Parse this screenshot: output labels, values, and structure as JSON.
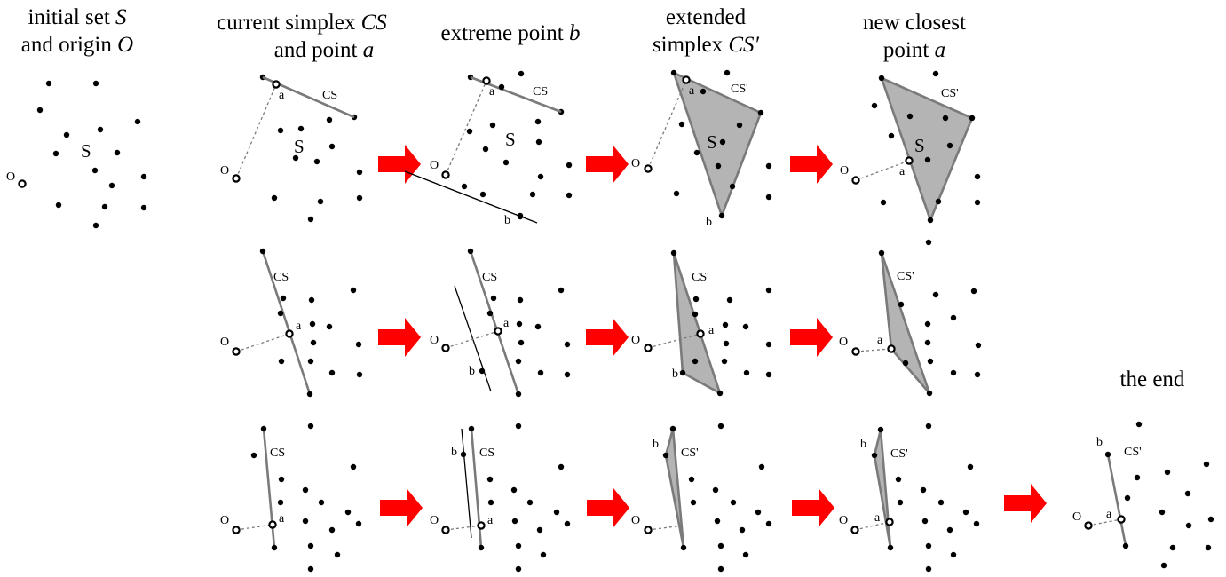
{
  "headers": {
    "initial": {
      "line1": "initial set ",
      "line1_var": "S",
      "line2": "and origin ",
      "line2_var": "O"
    },
    "current": {
      "line1": "current simplex ",
      "line1_var": "CS",
      "line2": "and point ",
      "line2_var": "a"
    },
    "extreme": {
      "line1": "extreme point ",
      "line1_var": "b"
    },
    "extended": {
      "line1": "extended",
      "line2": "simplex ",
      "line2_var": "CS′"
    },
    "newclosest": {
      "line1": "new closest",
      "line2": "point ",
      "line2_var": "a"
    },
    "end": {
      "line1": "the  end"
    }
  },
  "labels": {
    "S": "S",
    "O": "O",
    "a": "a",
    "b": "b",
    "CS": "CS",
    "CS_prime": "CS'"
  },
  "colors": {
    "arrow": "#ff0000",
    "simplex_edge": "#7a7a7a",
    "simplex_fill": "#b4b4b4",
    "point": "#000000",
    "dashed": "#7a7a7a"
  },
  "icons": {
    "arrow": "right-arrow-icon"
  }
}
